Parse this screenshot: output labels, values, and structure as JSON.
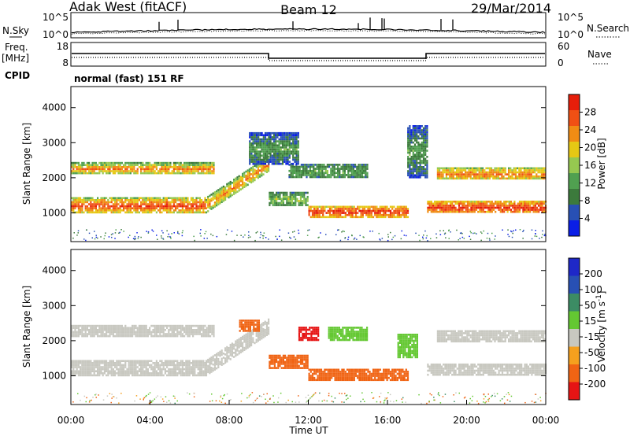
{
  "header": {
    "station": "Adak West (fitACF)",
    "beam": "Beam 12",
    "date": "29/Mar/2014"
  },
  "noise_panel": {
    "left_label": "N.Sky",
    "right_label": "N.Search",
    "left_ticks": [
      "10^5",
      "10^0"
    ],
    "right_ticks": [
      "10^5",
      "10^0"
    ]
  },
  "freq_panel": {
    "left_label_line1": "Freq.",
    "left_label_line2": "[MHz]",
    "left_ticks": [
      "18",
      "8"
    ],
    "right_ticks": [
      "60",
      "0"
    ],
    "right_label": "Nave",
    "cpid_label": "CPID",
    "cpid_text": "normal (fast) 151 RF"
  },
  "colors": {
    "power": [
      "#0a1ee6",
      "#2850b4",
      "#3c7a3c",
      "#50a050",
      "#96c850",
      "#e6c814",
      "#f08c14",
      "#f05014",
      "#e61e0a"
    ],
    "velocity": [
      "#e61414",
      "#f06414",
      "#f5a01e",
      "#c8c8c0",
      "#64c832",
      "#3c8c64",
      "#2850b4",
      "#1e28c8"
    ]
  },
  "chart_data": [
    {
      "type": "heatmap",
      "name": "power",
      "xlabel": "",
      "ylabel": "Slant Range [km]",
      "x_ticks": [],
      "y_ticks": [
        "1000",
        "2000",
        "3000",
        "4000"
      ],
      "xlim": [
        0,
        24
      ],
      "ylim": [
        180,
        4600
      ],
      "colorbar_label": "Power [dB]",
      "colorbar_ticks": [
        "4",
        "8",
        "12",
        "16",
        "20",
        "24",
        "28"
      ],
      "bands": [
        {
          "t": [
            0,
            6.8
          ],
          "r": [
            1000,
            1450
          ],
          "level": 28,
          "edge": 16
        },
        {
          "t": [
            6.8,
            10.0
          ],
          "r": [
            1000,
            1450
          ],
          "level": 24,
          "edge": 12,
          "slope": [
            0,
            1200
          ]
        },
        {
          "t": [
            0,
            7.2
          ],
          "r": [
            2100,
            2450
          ],
          "level": 24,
          "edge": 12
        },
        {
          "t": [
            10.0,
            12.0
          ],
          "r": [
            1200,
            1600
          ],
          "level": 16,
          "edge": 8
        },
        {
          "t": [
            11.0,
            15.0
          ],
          "r": [
            2000,
            2400
          ],
          "level": 12,
          "edge": 8
        },
        {
          "t": [
            12.0,
            17.0
          ],
          "r": [
            900,
            1200
          ],
          "level": 28,
          "edge": 20
        },
        {
          "t": [
            18.0,
            24.0
          ],
          "r": [
            1000,
            1350
          ],
          "level": 28,
          "edge": 20
        },
        {
          "t": [
            18.5,
            24.0
          ],
          "r": [
            1950,
            2300
          ],
          "level": 24,
          "edge": 16
        },
        {
          "t": [
            17.0,
            18.0
          ],
          "r": [
            2000,
            3500
          ],
          "level": 12,
          "edge": 4
        },
        {
          "t": [
            9.0,
            11.5
          ],
          "r": [
            2400,
            3300
          ],
          "level": 12,
          "edge": 4
        }
      ]
    },
    {
      "type": "heatmap",
      "name": "velocity",
      "xlabel": "Time UT",
      "ylabel": "Slant Range [km]",
      "x_ticks": [
        "00:00",
        "04:00",
        "08:00",
        "12:00",
        "16:00",
        "20:00",
        "00:00"
      ],
      "y_ticks": [
        "1000",
        "2000",
        "3000",
        "4000"
      ],
      "xlim": [
        0,
        24
      ],
      "ylim": [
        180,
        4600
      ],
      "colorbar_label": "Velocity [m s^-1]",
      "colorbar_ticks": [
        "-200",
        "-100",
        "-50",
        "-15",
        "15",
        "50",
        "100",
        "200"
      ],
      "bands": [
        {
          "t": [
            0,
            6.8
          ],
          "r": [
            1000,
            1450
          ],
          "vel": 0
        },
        {
          "t": [
            6.8,
            10.0
          ],
          "r": [
            1000,
            1450
          ],
          "vel": 0,
          "slope": [
            0,
            1200
          ]
        },
        {
          "t": [
            0,
            7.2
          ],
          "r": [
            2100,
            2450
          ],
          "vel": 0
        },
        {
          "t": [
            10.0,
            12.0
          ],
          "r": [
            1200,
            1600
          ],
          "vel": -80
        },
        {
          "t": [
            12.0,
            17.0
          ],
          "r": [
            900,
            1200
          ],
          "vel": -80
        },
        {
          "t": [
            11.5,
            12.5
          ],
          "r": [
            2000,
            2400
          ],
          "vel": -220
        },
        {
          "t": [
            13.0,
            15.0
          ],
          "r": [
            2000,
            2400
          ],
          "vel": 40
        },
        {
          "t": [
            16.5,
            17.5
          ],
          "r": [
            1500,
            2200
          ],
          "vel": 40
        },
        {
          "t": [
            18.0,
            24.0
          ],
          "r": [
            1000,
            1350
          ],
          "vel": 0
        },
        {
          "t": [
            18.5,
            24.0
          ],
          "r": [
            1950,
            2300
          ],
          "vel": 0
        },
        {
          "t": [
            8.5,
            9.5
          ],
          "r": [
            2300,
            2600
          ],
          "vel": -60
        }
      ]
    }
  ]
}
